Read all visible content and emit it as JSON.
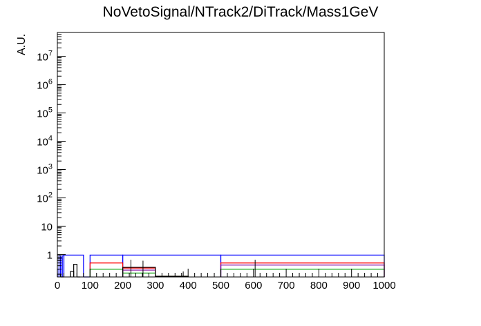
{
  "chart_data": {
    "type": "histogram",
    "title": "NoVetoSignal/NTrack2/DiTrack/Mass1GeV",
    "ylabel": "A.U.",
    "xlabel": "",
    "xlim": [
      0,
      1000
    ],
    "ylim": [
      0.16,
      70000000
    ],
    "y_scale": "log",
    "grid": false,
    "x_ticks": [
      0,
      100,
      200,
      300,
      400,
      500,
      600,
      700,
      800,
      900,
      1000
    ],
    "y_ticks": [
      {
        "value": 1,
        "label": "1",
        "sup": ""
      },
      {
        "value": 10,
        "label": "10",
        "sup": ""
      },
      {
        "value": 100,
        "label": "10",
        "sup": "2"
      },
      {
        "value": 1000,
        "label": "10",
        "sup": "3"
      },
      {
        "value": 10000,
        "label": "10",
        "sup": "4"
      },
      {
        "value": 100000,
        "label": "10",
        "sup": "5"
      },
      {
        "value": 1000000,
        "label": "10",
        "sup": "6"
      },
      {
        "value": 10000000,
        "label": "10",
        "sup": "7"
      }
    ],
    "series": [
      {
        "color": "#0000ff",
        "bins": [
          {
            "x0": 0,
            "x1": 5,
            "y": 0.3
          },
          {
            "x0": 5,
            "x1": 10,
            "y": 0.9
          },
          {
            "x0": 10,
            "x1": 15,
            "y": 0.75
          },
          {
            "x0": 15,
            "x1": 20,
            "y": 0.9
          },
          {
            "x0": 20,
            "x1": 80,
            "y": 0.95
          },
          {
            "x0": 80,
            "x1": 100,
            "y": 0.16
          },
          {
            "x0": 100,
            "x1": 200,
            "y": 0.95
          },
          {
            "x0": 200,
            "x1": 500,
            "y": 0.95
          },
          {
            "x0": 500,
            "x1": 1000,
            "y": 0.95
          }
        ]
      },
      {
        "color": "#ff0000",
        "bins": [
          {
            "x0": 100,
            "x1": 200,
            "y": 0.5
          },
          {
            "x0": 200,
            "x1": 300,
            "y": 0.33
          },
          {
            "x0": 300,
            "x1": 400,
            "y": 0.17
          },
          {
            "x0": 500,
            "x1": 1000,
            "y": 0.5
          }
        ]
      },
      {
        "color": "#00a000",
        "bins": [
          {
            "x0": 100,
            "x1": 200,
            "y": 0.3
          },
          {
            "x0": 200,
            "x1": 300,
            "y": 0.22
          },
          {
            "x0": 300,
            "x1": 400,
            "y": 0.17
          },
          {
            "x0": 500,
            "x1": 1000,
            "y": 0.3
          }
        ]
      },
      {
        "color": "#8000a0",
        "bins": [
          {
            "x0": 200,
            "x1": 300,
            "y": 0.28
          },
          {
            "x0": 500,
            "x1": 1000,
            "y": 0.42
          }
        ]
      },
      {
        "color": "#000000",
        "bins": [
          {
            "x0": 0,
            "x1": 10,
            "y": 0.2
          },
          {
            "x0": 10,
            "x1": 20,
            "y": 0.16
          },
          {
            "x0": 40,
            "x1": 50,
            "y": 0.25
          },
          {
            "x0": 50,
            "x1": 60,
            "y": 0.45
          },
          {
            "x0": 60,
            "x1": 70,
            "y": 0.16
          },
          {
            "x0": 200,
            "x1": 300,
            "y": 0.35
          },
          {
            "x0": 300,
            "x1": 400,
            "y": 0.17
          }
        ]
      }
    ],
    "error_bars": [
      {
        "x": 225,
        "lo": 0.16,
        "hi": 0.65
      },
      {
        "x": 262,
        "lo": 0.16,
        "hi": 0.6
      },
      {
        "x": 385,
        "lo": 0.16,
        "hi": 0.25
      },
      {
        "x": 605,
        "lo": 0.16,
        "hi": 0.65
      }
    ]
  }
}
